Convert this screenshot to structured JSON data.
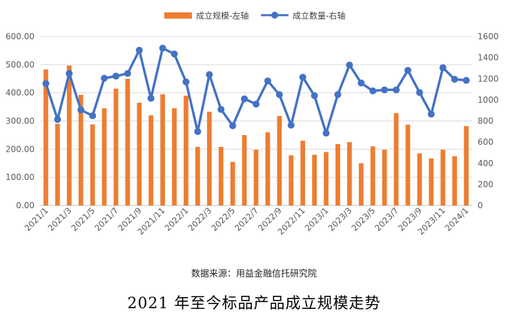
{
  "chart_data": {
    "type": "bar",
    "categories": [
      "2021/1",
      "2021/2",
      "2021/3",
      "2021/4",
      "2021/5",
      "2021/6",
      "2021/7",
      "2021/8",
      "2021/9",
      "2021/10",
      "2021/11",
      "2021/12",
      "2022/1",
      "2022/2",
      "2022/3",
      "2022/4",
      "2022/5",
      "2022/6",
      "2022/7",
      "2022/8",
      "2022/9",
      "2022/10",
      "2022/11",
      "2022/12",
      "2023/1",
      "2023/2",
      "2023/3",
      "2023/4",
      "2023/5",
      "2023/6",
      "2023/7",
      "2023/8",
      "2023/9",
      "2023/10",
      "2023/11",
      "2023/12",
      "2024/1"
    ],
    "x_tick_labels": [
      "2021/1",
      "2021/3",
      "2021/5",
      "2021/7",
      "2021/9",
      "2021/11",
      "2022/1",
      "2022/3",
      "2022/5",
      "2022/7",
      "2022/9",
      "2022/11",
      "2023/1",
      "2023/3",
      "2023/5",
      "2023/7",
      "2023/9",
      "2023/11",
      "2024/1"
    ],
    "series": [
      {
        "name": "成立规模-左轴",
        "type": "bar",
        "axis": "left",
        "color": "#ED7D31",
        "values": [
          483,
          290,
          497,
          393,
          288,
          345,
          415,
          450,
          365,
          320,
          395,
          345,
          390,
          208,
          333,
          208,
          155,
          250,
          198,
          260,
          318,
          178,
          230,
          180,
          190,
          218,
          225,
          150,
          210,
          198,
          328,
          287,
          185,
          167,
          198,
          175,
          282
        ]
      },
      {
        "name": "成立数量-右轴",
        "type": "line",
        "axis": "right",
        "color": "#4472C4",
        "values": [
          1155,
          815,
          1250,
          905,
          850,
          1205,
          1225,
          1250,
          1470,
          1015,
          1490,
          1435,
          1170,
          700,
          1240,
          910,
          755,
          1010,
          960,
          1180,
          1050,
          760,
          1215,
          1040,
          685,
          1050,
          1330,
          1160,
          1085,
          1095,
          1095,
          1280,
          1070,
          865,
          1305,
          1195,
          1185
        ]
      }
    ],
    "ylim_left": [
      0,
      600
    ],
    "ylim_right": [
      0,
      1600
    ],
    "left_ticks": [
      "0.00",
      "100.00",
      "200.00",
      "300.00",
      "400.00",
      "500.00",
      "600.00"
    ],
    "right_ticks": [
      "0",
      "200",
      "400",
      "600",
      "800",
      "1000",
      "1200",
      "1400",
      "1600"
    ],
    "grid": true,
    "legend": "top-center"
  },
  "source": "数据来源：用益金融信托研究院",
  "caption": "2021 年至今标品产品成立规模走势"
}
